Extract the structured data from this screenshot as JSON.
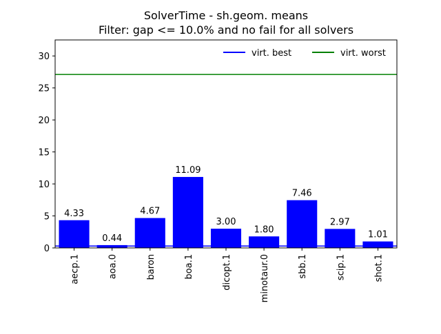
{
  "chart_data": {
    "type": "bar",
    "title_line1": "SolverTime - sh.geom. means",
    "title_line2": "Filter: gap <= 10.0% and no fail for all solvers",
    "categories": [
      "aecp.1",
      "aoa.0",
      "baron",
      "boa.1",
      "dicopt.1",
      "minotaur.0",
      "sbb.1",
      "scip.1",
      "shot.1"
    ],
    "values": [
      4.33,
      0.44,
      4.67,
      11.09,
      3.0,
      1.8,
      7.46,
      2.97,
      1.01
    ],
    "value_labels": [
      "4.33",
      "0.44",
      "4.67",
      "11.09",
      "3.00",
      "1.80",
      "7.46",
      "2.97",
      "1.01"
    ],
    "ylim": [
      0,
      32.5
    ],
    "yticks": [
      0,
      5,
      10,
      15,
      20,
      25,
      30
    ],
    "bar_color": "#0000ff",
    "reference_lines": [
      {
        "name": "virt. best",
        "value": 0.3,
        "color": "#0000ff"
      },
      {
        "name": "virt. worst",
        "value": 27.1,
        "color": "#008000"
      }
    ],
    "legend_position": "top-right",
    "grid": false
  }
}
